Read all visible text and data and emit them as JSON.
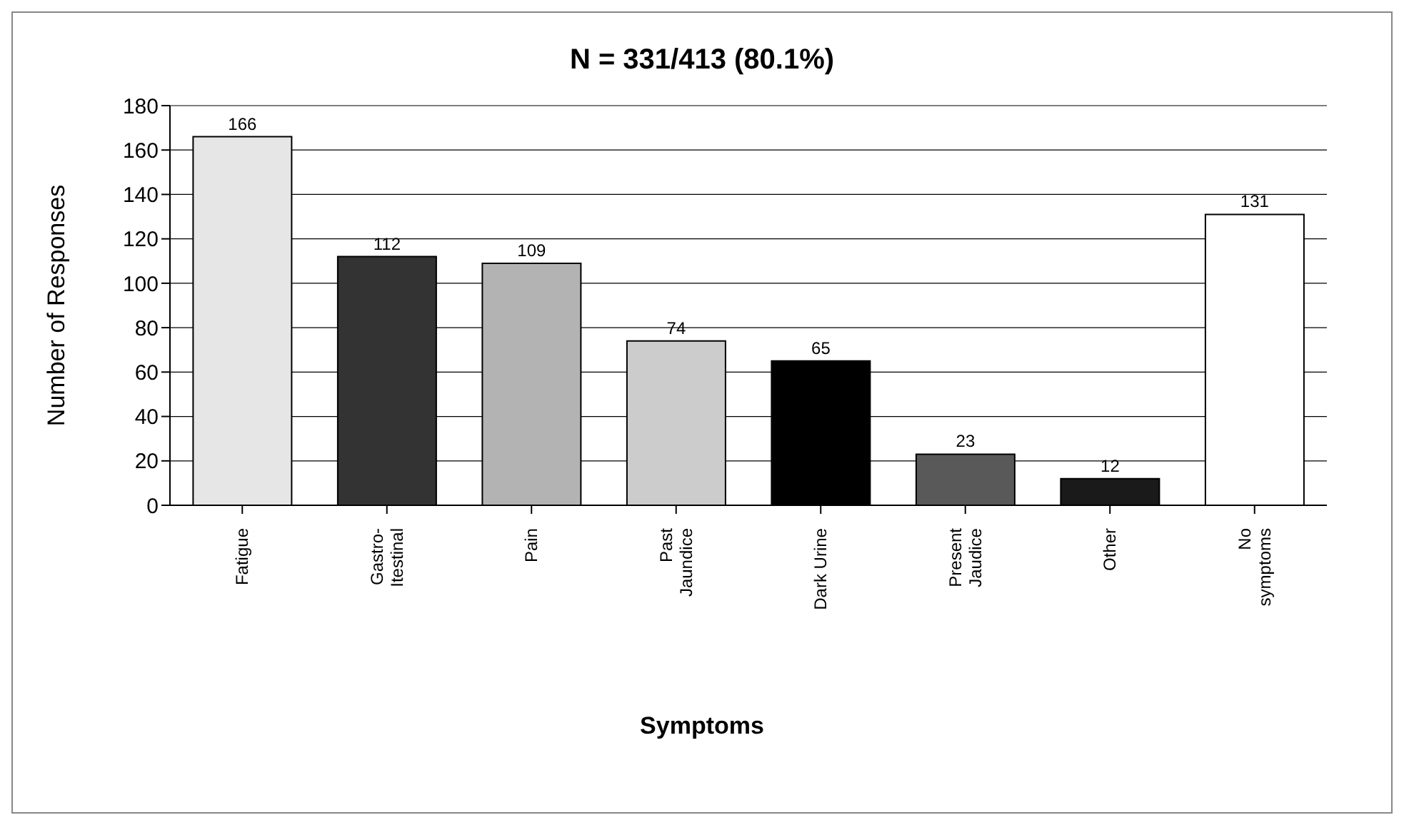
{
  "chart_data": {
    "type": "bar",
    "title": "N = 331/413 (80.1%)",
    "xlabel": "Symptoms",
    "ylabel": "Number of Responses",
    "categories": [
      "Fatigue",
      "Gastro-\nItestinal",
      "Pain",
      "Past\nJaundice",
      "Dark Urine",
      "Present\nJaudice",
      "Other",
      "No\nsymptoms"
    ],
    "values": [
      166,
      112,
      109,
      74,
      65,
      23,
      12,
      131
    ],
    "colors": [
      "#e6e6e6",
      "#333333",
      "#b3b3b3",
      "#cccccc",
      "#000000",
      "#595959",
      "#1a1a1a",
      "#ffffff"
    ],
    "ylim": [
      0,
      180
    ],
    "yticks": [
      0,
      20,
      40,
      60,
      80,
      100,
      120,
      140,
      160,
      180
    ],
    "grid": "y",
    "data_labels": true
  }
}
